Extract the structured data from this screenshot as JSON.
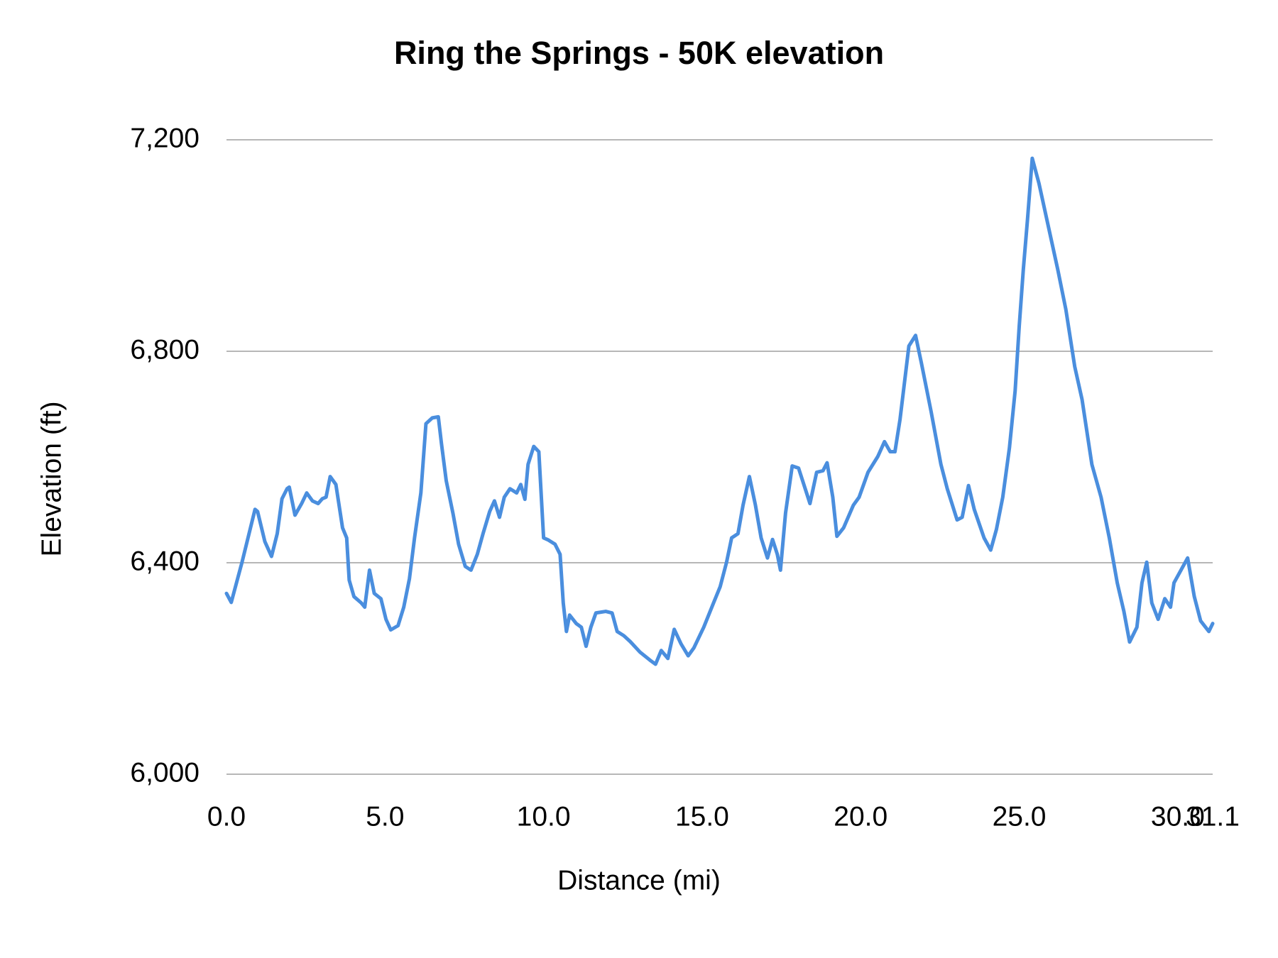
{
  "chart_data": {
    "type": "line",
    "title": "Ring the Springs - 50K elevation",
    "xlabel": "Distance (mi)",
    "ylabel": "Elevation (ft)",
    "color": "#4a8ede",
    "grid": true,
    "xlim": [
      0,
      31.1
    ],
    "xticks": [
      {
        "value": 0,
        "label": "0.0"
      },
      {
        "value": 5,
        "label": "5.0"
      },
      {
        "value": 10,
        "label": "10.0"
      },
      {
        "value": 15,
        "label": "15.0"
      },
      {
        "value": 20,
        "label": "20.0"
      },
      {
        "value": 25,
        "label": "25.0"
      },
      {
        "value": 30,
        "label": "30.0"
      },
      {
        "value": 31.1,
        "label": "31.1"
      }
    ],
    "ylim": [
      6000,
      7200
    ],
    "yticks": [
      {
        "value": 6000,
        "label": "6,000"
      },
      {
        "value": 6400,
        "label": "6,400"
      },
      {
        "value": 6800,
        "label": "6,800"
      },
      {
        "value": 7200,
        "label": "7,200"
      }
    ],
    "x": [
      0.0,
      0.15,
      0.49,
      0.9,
      0.98,
      1.21,
      1.42,
      1.6,
      1.75,
      1.91,
      1.98,
      2.16,
      2.37,
      2.53,
      2.71,
      2.89,
      3.02,
      3.14,
      3.27,
      3.45,
      3.66,
      3.79,
      3.87,
      4.02,
      4.25,
      4.36,
      4.51,
      4.66,
      4.87,
      5.03,
      5.18,
      5.41,
      5.59,
      5.77,
      5.93,
      6.13,
      6.29,
      6.49,
      6.68,
      6.78,
      6.93,
      7.14,
      7.32,
      7.53,
      7.71,
      7.91,
      8.09,
      8.3,
      8.45,
      8.61,
      8.76,
      8.94,
      9.15,
      9.28,
      9.41,
      9.51,
      9.69,
      9.85,
      10.0,
      10.15,
      10.36,
      10.52,
      10.62,
      10.72,
      10.82,
      11.03,
      11.19,
      11.34,
      11.49,
      11.65,
      11.96,
      12.16,
      12.32,
      12.53,
      12.73,
      13.04,
      13.35,
      13.53,
      13.71,
      13.92,
      14.12,
      14.33,
      14.56,
      14.74,
      15.05,
      15.36,
      15.57,
      15.77,
      15.93,
      16.13,
      16.29,
      16.49,
      16.68,
      16.86,
      17.06,
      17.22,
      17.37,
      17.47,
      17.63,
      17.84,
      18.04,
      18.25,
      18.4,
      18.61,
      18.81,
      18.94,
      19.12,
      19.25,
      19.46,
      19.77,
      19.95,
      20.23,
      20.54,
      20.75,
      20.93,
      21.08,
      21.24,
      21.52,
      21.73,
      21.91,
      22.22,
      22.53,
      22.73,
      23.04,
      23.2,
      23.4,
      23.58,
      23.89,
      24.1,
      24.28,
      24.48,
      24.69,
      24.87,
      25.0,
      25.13,
      25.26,
      25.41,
      25.62,
      25.9,
      26.21,
      26.47,
      26.75,
      26.98,
      27.29,
      27.58,
      27.84,
      28.09,
      28.3,
      28.48,
      28.71,
      28.87,
      29.02,
      29.18,
      29.38,
      29.59,
      29.77,
      29.88,
      30.1,
      30.31,
      30.52,
      30.72,
      30.98,
      31.1
    ],
    "values": [
      6342,
      6325,
      6401,
      6501,
      6497,
      6440,
      6412,
      6455,
      6521,
      6540,
      6543,
      6490,
      6512,
      6532,
      6517,
      6512,
      6521,
      6524,
      6563,
      6548,
      6466,
      6447,
      6367,
      6336,
      6324,
      6316,
      6386,
      6342,
      6332,
      6293,
      6273,
      6281,
      6316,
      6370,
      6447,
      6532,
      6663,
      6674,
      6676,
      6625,
      6555,
      6494,
      6435,
      6393,
      6386,
      6416,
      6455,
      6497,
      6517,
      6486,
      6524,
      6540,
      6532,
      6548,
      6520,
      6586,
      6620,
      6610,
      6447,
      6443,
      6435,
      6416,
      6324,
      6270,
      6301,
      6285,
      6278,
      6242,
      6278,
      6305,
      6308,
      6305,
      6270,
      6262,
      6251,
      6231,
      6216,
      6208,
      6234,
      6219,
      6274,
      6247,
      6224,
      6239,
      6278,
      6324,
      6355,
      6401,
      6447,
      6455,
      6509,
      6563,
      6509,
      6447,
      6409,
      6444,
      6416,
      6386,
      6494,
      6583,
      6579,
      6540,
      6512,
      6571,
      6574,
      6589,
      6524,
      6450,
      6466,
      6509,
      6524,
      6571,
      6601,
      6629,
      6610,
      6610,
      6671,
      6810,
      6830,
      6779,
      6686,
      6586,
      6540,
      6481,
      6486,
      6546,
      6501,
      6447,
      6424,
      6463,
      6524,
      6617,
      6725,
      6848,
      6956,
      7049,
      7165,
      7118,
      7041,
      6956,
      6879,
      6771,
      6709,
      6586,
      6524,
      6447,
      6362,
      6308,
      6250,
      6278,
      6362,
      6401,
      6324,
      6293,
      6332,
      6316,
      6362,
      6386,
      6409,
      6336,
      6290,
      6270,
      6285
    ]
  }
}
